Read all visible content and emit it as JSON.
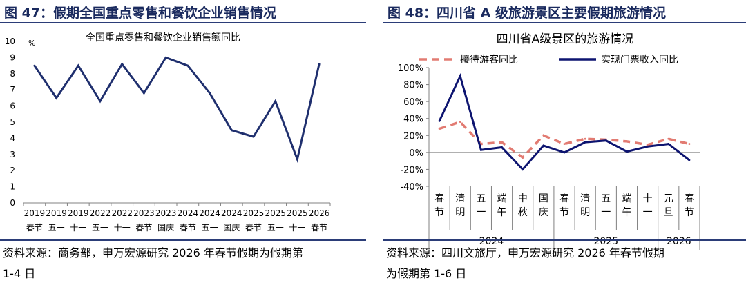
{
  "left_panel": {
    "figure_title": "图 47：假期全国重点零售和餐饮企业销售情况",
    "source_line1": "资料来源：商务部，申万宏源研究 2026 年春节假期为假期第",
    "source_line2": "1-4 日"
  },
  "right_panel": {
    "figure_title": "图 48：四川省 A 级旅游景区主要假期旅游情况",
    "source_line1": "资料来源：四川文旅厅，申万宏源研究  2026  年春节假期",
    "source_line2": "为假期第 1-6 日"
  },
  "chart_data": [
    {
      "type": "line",
      "title": "全国重点零售和餐饮企业销售额同比",
      "ylabel": "%",
      "ylim": [
        0,
        10
      ],
      "yticks": [
        0,
        1,
        2,
        3,
        4,
        5,
        6,
        7,
        8,
        9,
        10
      ],
      "categories": [
        [
          "2019",
          "春节"
        ],
        [
          "2019",
          "五一"
        ],
        [
          "2019",
          "十一"
        ],
        [
          "2022",
          "五一"
        ],
        [
          "2022",
          "十一"
        ],
        [
          "2023",
          "春节"
        ],
        [
          "2023",
          "国庆"
        ],
        [
          "2024",
          "春节"
        ],
        [
          "2024",
          "五一"
        ],
        [
          "2024",
          "国庆"
        ],
        [
          "2025",
          "春节"
        ],
        [
          "2025",
          "五一"
        ],
        [
          "2025",
          "十一"
        ],
        [
          "2026",
          "春节"
        ]
      ],
      "series": [
        {
          "values": [
            8.5,
            6.5,
            8.5,
            6.3,
            8.6,
            6.8,
            9.0,
            8.5,
            6.8,
            4.5,
            4.1,
            6.3,
            2.7,
            8.6
          ],
          "color": "#1f2f6e"
        }
      ],
      "grid": false
    },
    {
      "type": "line",
      "title": "四川省A级景区的旅游情况",
      "ylim": [
        -40,
        100
      ],
      "yticks": [
        "100%",
        "80%",
        "60%",
        "40%",
        "20%",
        "0%",
        "-20%",
        "-40%"
      ],
      "categories": [
        "春节",
        "清明",
        "五一",
        "端午",
        "中秋",
        "国庆",
        "春节",
        "清明",
        "五一",
        "端午",
        "十一",
        "元旦",
        "春节"
      ],
      "year_groups": [
        {
          "label": "2024",
          "count": 6
        },
        {
          "label": "2025",
          "count": 5
        },
        {
          "label": "2026",
          "count": 2
        }
      ],
      "series": [
        {
          "name": "接待游客同比",
          "style": "dashed",
          "color": "#e27b72",
          "values": [
            28,
            36,
            10,
            12,
            -6,
            20,
            10,
            16,
            15,
            13,
            9,
            16,
            10
          ]
        },
        {
          "name": "实现门票收入同比",
          "style": "solid",
          "color": "#0d1470",
          "values": [
            37,
            90,
            3,
            6,
            -20,
            8,
            0,
            12,
            14,
            1,
            7,
            10,
            -9
          ]
        }
      ],
      "legend_position": "top",
      "grid": false
    }
  ]
}
